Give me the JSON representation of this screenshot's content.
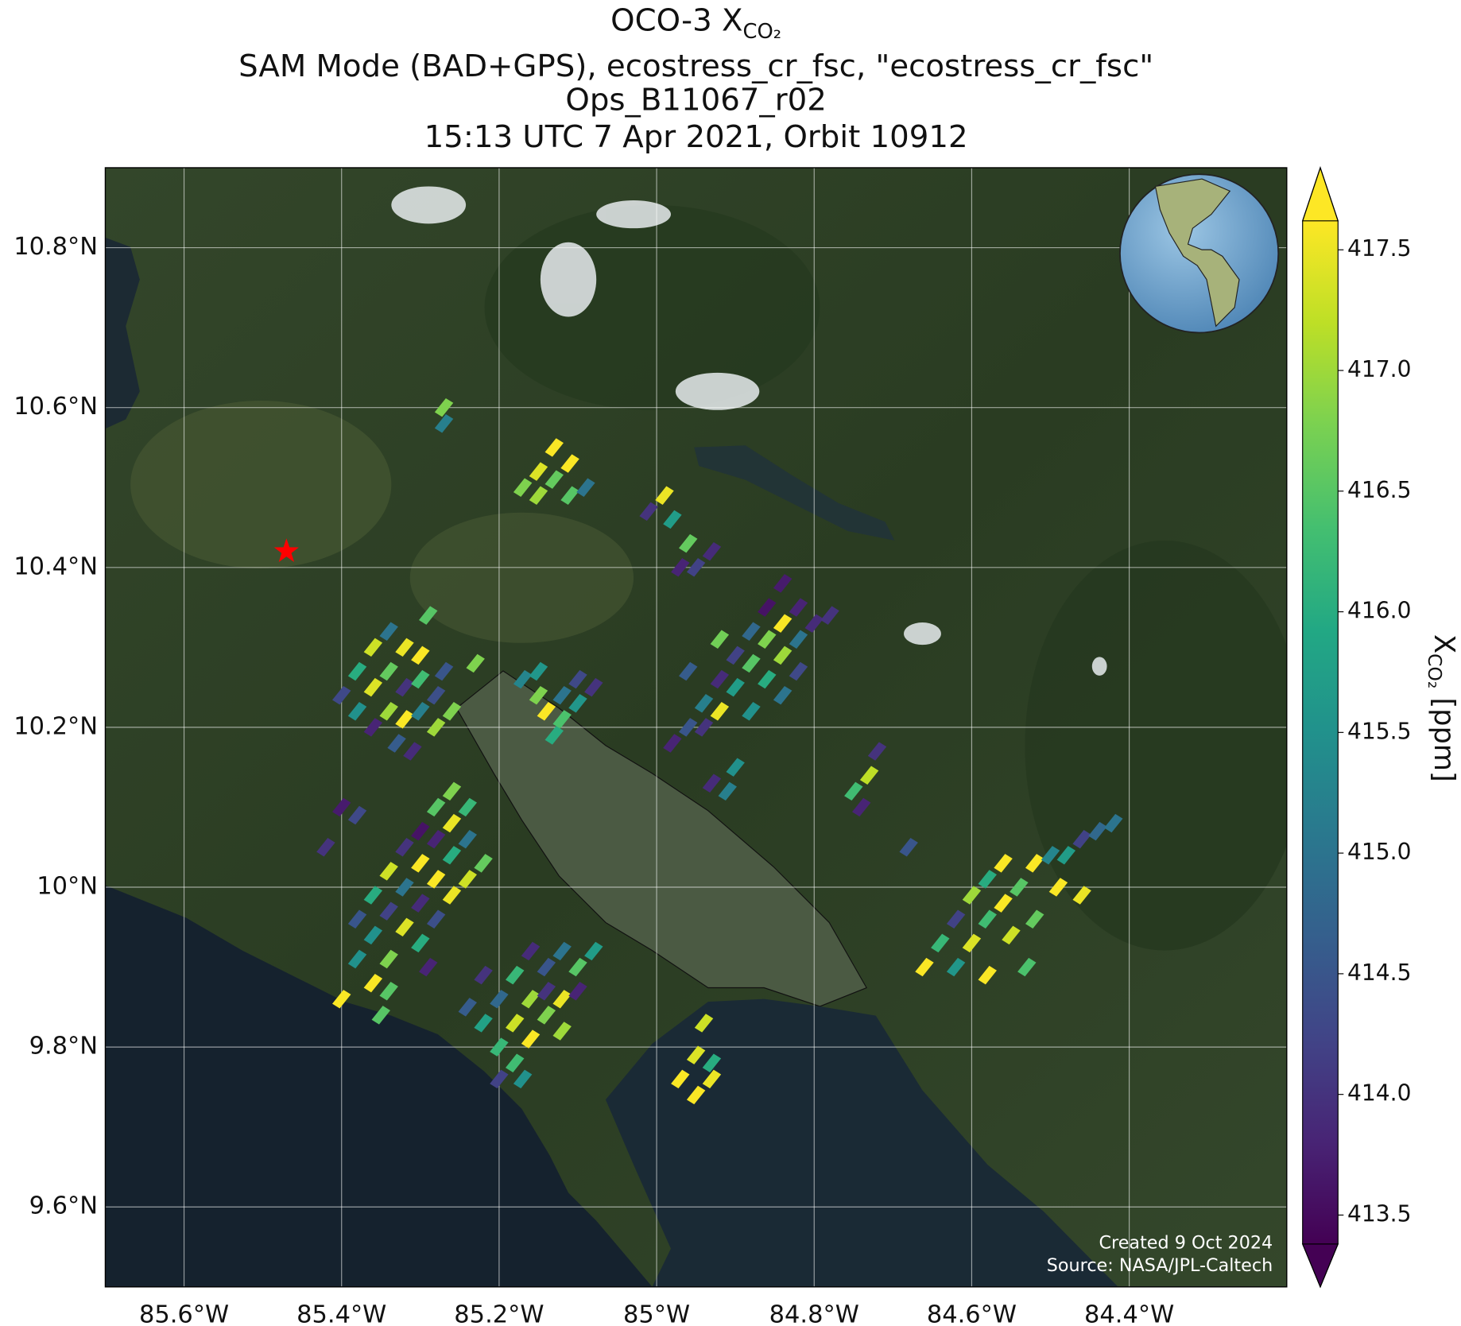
{
  "map": {
    "title": {
      "main": "OCO-3 X",
      "sub": "CO₂"
    },
    "subtitle": [
      "SAM Mode (BAD+GPS), ecostress_cr_fsc, \"ecostress_cr_fsc\"",
      "Ops_B11067_r02",
      "15:13 UTC 7 Apr 2021, Orbit 10912"
    ],
    "xlim": [
      -85.7,
      -84.2
    ],
    "ylim": [
      9.5,
      10.9
    ],
    "xticks": [
      {
        "value": -85.6,
        "label": "85.6°W"
      },
      {
        "value": -85.4,
        "label": "85.4°W"
      },
      {
        "value": -85.2,
        "label": "85.2°W"
      },
      {
        "value": -85.0,
        "label": "85°W"
      },
      {
        "value": -84.8,
        "label": "84.8°W"
      },
      {
        "value": -84.6,
        "label": "84.6°W"
      },
      {
        "value": -84.4,
        "label": "84.4°W"
      }
    ],
    "yticks": [
      {
        "value": 9.6,
        "label": "9.6°N"
      },
      {
        "value": 9.8,
        "label": "9.8°N"
      },
      {
        "value": 10.0,
        "label": "10°N"
      },
      {
        "value": 10.2,
        "label": "10.2°N"
      },
      {
        "value": 10.4,
        "label": "10.4°N"
      },
      {
        "value": 10.6,
        "label": "10.6°N"
      },
      {
        "value": 10.8,
        "label": "10.8°N"
      }
    ],
    "grid": true,
    "clim": [
      413.38,
      417.62
    ],
    "cticks": [
      413.5,
      {
        "value": 414,
        "label": "414.0"
      },
      414.5,
      {
        "value": 415,
        "label": "415.0"
      },
      415.5,
      {
        "value": 416,
        "label": "416.0"
      },
      416.5,
      {
        "value": 417,
        "label": "417.0"
      },
      417.5
    ],
    "colorbar_label": {
      "main": "X",
      "sub": "CO₂",
      "unit": " [ppm]"
    },
    "site": {
      "lon": -85.47,
      "lat": 10.42,
      "color": "#ff0000"
    },
    "credits": [
      "Created 9 Oct 2024",
      "Source: NASA/JPL-Caltech"
    ],
    "soundings": [
      [
        -85.4,
        10.24,
        414.3
      ],
      [
        -85.38,
        10.27,
        416
      ],
      [
        -85.36,
        10.3,
        417.3
      ],
      [
        -85.34,
        10.32,
        415
      ],
      [
        -85.32,
        10.3,
        417.5
      ],
      [
        -85.3,
        10.29,
        417.6
      ],
      [
        -85.38,
        10.22,
        415.5
      ],
      [
        -85.36,
        10.25,
        417.4
      ],
      [
        -85.34,
        10.27,
        416.6
      ],
      [
        -85.32,
        10.25,
        414
      ],
      [
        -85.3,
        10.26,
        416.3
      ],
      [
        -85.36,
        10.2,
        413.8
      ],
      [
        -85.34,
        10.22,
        417
      ],
      [
        -85.32,
        10.21,
        417.6
      ],
      [
        -85.3,
        10.22,
        415.2
      ],
      [
        -85.28,
        10.24,
        414.4
      ],
      [
        -85.33,
        10.18,
        414.6
      ],
      [
        -85.28,
        10.2,
        417
      ],
      [
        -85.26,
        10.22,
        416.8
      ],
      [
        -85.31,
        10.17,
        413.9
      ],
      [
        -85.27,
        10.27,
        414.5
      ],
      [
        -85.23,
        10.28,
        416.8
      ],
      [
        -85.29,
        10.34,
        416.5
      ],
      [
        -85.38,
        9.96,
        414.5
      ],
      [
        -85.36,
        9.99,
        416
      ],
      [
        -85.34,
        10.02,
        417.3
      ],
      [
        -85.32,
        10.05,
        414
      ],
      [
        -85.3,
        10.07,
        413.6
      ],
      [
        -85.28,
        10.1,
        416.5
      ],
      [
        -85.26,
        10.12,
        416.8
      ],
      [
        -85.36,
        9.94,
        415.5
      ],
      [
        -85.34,
        9.97,
        414.2
      ],
      [
        -85.32,
        10.0,
        415
      ],
      [
        -85.3,
        10.03,
        417.6
      ],
      [
        -85.28,
        10.06,
        413.8
      ],
      [
        -85.26,
        10.08,
        417.5
      ],
      [
        -85.24,
        10.1,
        416.2
      ],
      [
        -85.34,
        9.91,
        416.8
      ],
      [
        -85.32,
        9.95,
        417.4
      ],
      [
        -85.3,
        9.98,
        413.9
      ],
      [
        -85.28,
        10.01,
        417.6
      ],
      [
        -85.26,
        10.04,
        416
      ],
      [
        -85.24,
        10.06,
        415
      ],
      [
        -85.22,
        10.03,
        416.6
      ],
      [
        -85.3,
        9.93,
        416
      ],
      [
        -85.28,
        9.96,
        414.4
      ],
      [
        -85.26,
        9.99,
        417.5
      ],
      [
        -85.24,
        10.01,
        417.3
      ],
      [
        -85.38,
        9.91,
        415.5
      ],
      [
        -85.36,
        9.88,
        417.6
      ],
      [
        -85.34,
        9.87,
        416.5
      ],
      [
        -85.29,
        9.9,
        413.8
      ],
      [
        -85.4,
        9.86,
        417.6
      ],
      [
        -85.35,
        9.84,
        416.5
      ],
      [
        -85.42,
        10.05,
        414
      ],
      [
        -85.38,
        10.09,
        414.3
      ],
      [
        -85.4,
        10.1,
        413.7
      ],
      [
        -85.22,
        9.83,
        415.8
      ],
      [
        -85.2,
        9.86,
        414.8
      ],
      [
        -85.18,
        9.89,
        416.2
      ],
      [
        -85.16,
        9.92,
        413.9
      ],
      [
        -85.14,
        9.9,
        414.5
      ],
      [
        -85.12,
        9.92,
        415
      ],
      [
        -85.1,
        9.9,
        416.5
      ],
      [
        -85.2,
        9.8,
        416.2
      ],
      [
        -85.18,
        9.83,
        417.3
      ],
      [
        -85.16,
        9.86,
        417
      ],
      [
        -85.14,
        9.87,
        414
      ],
      [
        -85.12,
        9.86,
        417.5
      ],
      [
        -85.1,
        9.87,
        413.8
      ],
      [
        -85.18,
        9.78,
        416.3
      ],
      [
        -85.16,
        9.81,
        417.6
      ],
      [
        -85.14,
        9.84,
        416.8
      ],
      [
        -85.12,
        9.82,
        417
      ],
      [
        -85.24,
        9.85,
        414.6
      ],
      [
        -85.2,
        9.76,
        414.2
      ],
      [
        -85.17,
        9.76,
        415.5
      ],
      [
        -85.08,
        9.92,
        415.7
      ],
      [
        -85.22,
        9.89,
        414
      ],
      [
        -84.98,
        10.18,
        413.8
      ],
      [
        -84.96,
        10.2,
        414.5
      ],
      [
        -84.94,
        10.23,
        415.2
      ],
      [
        -84.92,
        10.26,
        413.9
      ],
      [
        -84.9,
        10.29,
        414.2
      ],
      [
        -84.88,
        10.32,
        414.8
      ],
      [
        -84.86,
        10.35,
        413.6
      ],
      [
        -84.84,
        10.38,
        413.7
      ],
      [
        -84.94,
        10.2,
        414
      ],
      [
        -84.92,
        10.22,
        417.5
      ],
      [
        -84.9,
        10.25,
        415.7
      ],
      [
        -84.88,
        10.28,
        416.5
      ],
      [
        -84.86,
        10.31,
        416.8
      ],
      [
        -84.84,
        10.33,
        417.6
      ],
      [
        -84.82,
        10.35,
        413.8
      ],
      [
        -84.88,
        10.22,
        415.5
      ],
      [
        -84.86,
        10.26,
        416
      ],
      [
        -84.84,
        10.29,
        417
      ],
      [
        -84.82,
        10.31,
        415
      ],
      [
        -84.8,
        10.33,
        413.9
      ],
      [
        -84.84,
        10.24,
        415
      ],
      [
        -84.82,
        10.27,
        414.3
      ],
      [
        -84.78,
        10.34,
        414
      ],
      [
        -84.96,
        10.27,
        414.6
      ],
      [
        -84.92,
        10.31,
        416.7
      ],
      [
        -84.9,
        10.15,
        415.5
      ],
      [
        -84.93,
        10.13,
        413.9
      ],
      [
        -84.91,
        10.12,
        415.2
      ],
      [
        -85.17,
        10.26,
        415.3
      ],
      [
        -85.15,
        10.24,
        416.8
      ],
      [
        -85.14,
        10.22,
        417.6
      ],
      [
        -85.12,
        10.24,
        415
      ],
      [
        -85.1,
        10.26,
        414.3
      ],
      [
        -85.12,
        10.21,
        416.4
      ],
      [
        -85.1,
        10.23,
        415.6
      ],
      [
        -85.08,
        10.25,
        414
      ],
      [
        -85.13,
        10.19,
        416
      ],
      [
        -85.15,
        10.27,
        415.6
      ],
      [
        -85.17,
        10.5,
        416.8
      ],
      [
        -85.15,
        10.52,
        417.4
      ],
      [
        -85.13,
        10.55,
        417.6
      ],
      [
        -85.15,
        10.49,
        417
      ],
      [
        -85.13,
        10.51,
        416.6
      ],
      [
        -85.11,
        10.53,
        417.6
      ],
      [
        -85.11,
        10.49,
        416.5
      ],
      [
        -85.09,
        10.5,
        415
      ],
      [
        -85.01,
        10.47,
        414
      ],
      [
        -84.99,
        10.49,
        417.5
      ],
      [
        -84.98,
        10.46,
        415.7
      ],
      [
        -84.96,
        10.43,
        416.6
      ],
      [
        -84.97,
        10.4,
        413.8
      ],
      [
        -84.95,
        10.4,
        414.2
      ],
      [
        -84.93,
        10.42,
        413.9
      ],
      [
        -84.66,
        9.9,
        417.6
      ],
      [
        -84.64,
        9.93,
        416.2
      ],
      [
        -84.62,
        9.96,
        414.2
      ],
      [
        -84.6,
        9.99,
        417
      ],
      [
        -84.58,
        10.01,
        416
      ],
      [
        -84.56,
        10.03,
        417.6
      ],
      [
        -84.62,
        9.9,
        415.6
      ],
      [
        -84.6,
        9.93,
        417.4
      ],
      [
        -84.58,
        9.96,
        416.3
      ],
      [
        -84.56,
        9.98,
        417.6
      ],
      [
        -84.54,
        10.0,
        416.5
      ],
      [
        -84.52,
        10.03,
        417.6
      ],
      [
        -84.5,
        10.04,
        415.3
      ],
      [
        -84.48,
        10.04,
        415.7
      ],
      [
        -84.46,
        10.06,
        414.2
      ],
      [
        -84.44,
        10.07,
        414.8
      ],
      [
        -84.58,
        9.89,
        417.6
      ],
      [
        -84.55,
        9.94,
        417.3
      ],
      [
        -84.52,
        9.96,
        416.6
      ],
      [
        -84.49,
        10.0,
        417.6
      ],
      [
        -84.46,
        9.99,
        417.5
      ],
      [
        -84.53,
        9.9,
        416.4
      ],
      [
        -84.42,
        10.08,
        415
      ],
      [
        -84.97,
        9.76,
        417.6
      ],
      [
        -84.95,
        9.79,
        417.4
      ],
      [
        -84.93,
        9.78,
        416
      ],
      [
        -84.93,
        9.76,
        417.5
      ],
      [
        -84.95,
        9.74,
        417.6
      ],
      [
        -84.94,
        9.83,
        417.3
      ],
      [
        -84.72,
        10.17,
        414
      ],
      [
        -84.73,
        10.14,
        417.2
      ],
      [
        -84.75,
        10.12,
        416.3
      ],
      [
        -84.74,
        10.1,
        413.8
      ],
      [
        -84.68,
        10.05,
        414.5
      ],
      [
        -85.27,
        10.6,
        416.8
      ],
      [
        -85.27,
        10.58,
        415.2
      ]
    ]
  }
}
